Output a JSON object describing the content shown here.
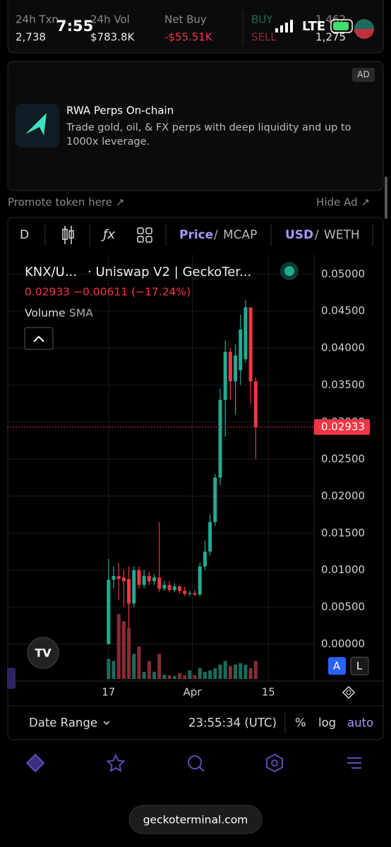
{
  "status_bar": {
    "time": "7:55",
    "network": "LTE"
  },
  "stats": [
    {
      "label": "24h Txn",
      "value": "2,738"
    },
    {
      "label": "24h Vol",
      "value": "$783.8K"
    },
    {
      "label": "Net Buy",
      "value": "-$55.51K"
    }
  ],
  "buy_sell": {
    "buy_label": "BUY",
    "buy_value": "1,462",
    "sell_label": "SELL",
    "sell_value": "1,275"
  },
  "ad": {
    "badge": "AD",
    "title": "RWA Perps On-chain",
    "text_line1": "Trade gold, oil, & FX perps with deep liquidity and up to",
    "text_line2": "1000x leverage."
  },
  "promote": "Promote token here ↗",
  "hide_ad": "Hide Ad ↗",
  "toolbar": {
    "interval": "D",
    "price": "Price",
    "mcap": "MCAP",
    "usd": "USD",
    "weth": "WETH",
    "separator": "/"
  },
  "chart_data": {
    "type": "candlestick",
    "title": "KNX/U...",
    "source": "· Uniswap V2 | GeckoTer...",
    "last_price": 0.02933,
    "change": "−0.00611 (−17.24%)",
    "volume_label": "Volume",
    "sma_label": "SMA",
    "up_color": "#22ab94",
    "down_color": "#f23645",
    "up_volume_color": "#1d6b5c",
    "down_volume_color": "#8a2a33",
    "open": [
      0.0,
      0.0087,
      0.0092,
      0.009,
      0.0088,
      0.0055,
      0.01,
      0.008,
      0.0092,
      0.0085,
      0.009,
      0.0075,
      0.008,
      0.0073,
      0.0078,
      0.0072,
      0.0068,
      0.0069,
      0.0067,
      0.0105,
      0.0125,
      0.0165,
      0.0225,
      0.033,
      0.0395,
      0.0355,
      0.037,
      0.0385,
      0.0455,
      0.0355
    ],
    "high": [
      0.0115,
      0.0105,
      0.011,
      0.01,
      0.0105,
      0.0105,
      0.0105,
      0.01,
      0.0098,
      0.0095,
      0.0165,
      0.0085,
      0.0085,
      0.0082,
      0.008,
      0.0078,
      0.0072,
      0.0073,
      0.011,
      0.014,
      0.0175,
      0.023,
      0.0345,
      0.041,
      0.04,
      0.0405,
      0.0445,
      0.0465,
      0.0455,
      0.036
    ],
    "low": [
      0.0,
      0.0075,
      0.006,
      0.005,
      0.002,
      0.005,
      0.0075,
      0.0075,
      0.008,
      0.008,
      0.007,
      0.0072,
      0.007,
      0.007,
      0.0068,
      0.0065,
      0.0065,
      0.0065,
      0.0065,
      0.01,
      0.012,
      0.016,
      0.0215,
      0.028,
      0.033,
      0.031,
      0.035,
      0.038,
      0.0325,
      0.025
    ],
    "close": [
      0.0087,
      0.0092,
      0.0088,
      0.0085,
      0.0055,
      0.01,
      0.008,
      0.0092,
      0.0085,
      0.009,
      0.0075,
      0.008,
      0.0073,
      0.0078,
      0.0072,
      0.0068,
      0.0069,
      0.0067,
      0.0105,
      0.0125,
      0.0165,
      0.0225,
      0.033,
      0.0395,
      0.0355,
      0.039,
      0.0425,
      0.0455,
      0.0355,
      0.02933
    ],
    "volume": [
      28,
      25,
      90,
      80,
      70,
      35,
      45,
      10,
      25,
      10,
      35,
      6,
      5,
      4,
      8,
      5,
      12,
      5,
      15,
      10,
      12,
      15,
      20,
      25,
      18,
      20,
      22,
      20,
      15,
      25
    ],
    "xlim": [
      -20,
      40.5
    ],
    "xticks": [
      {
        "value": 0,
        "label": "17"
      },
      {
        "value": 16.5,
        "label": "Apr"
      },
      {
        "value": 31.5,
        "label": "15"
      }
    ],
    "ylim": [
      -0.005,
      0.0527
    ],
    "yticks": [
      {
        "value": 0.05,
        "label": "0.05000"
      },
      {
        "value": 0.045,
        "label": "0.04500"
      },
      {
        "value": 0.04,
        "label": "0.04000"
      },
      {
        "value": 0.035,
        "label": "0.03500"
      },
      {
        "value": 0.03,
        "label": "0.03000"
      },
      {
        "value": 0.025,
        "label": "0.02500"
      },
      {
        "value": 0.02,
        "label": "0.02000"
      },
      {
        "value": 0.015,
        "label": "0.01500"
      },
      {
        "value": 0.01,
        "label": "0.01000"
      },
      {
        "value": 0.005,
        "label": "0.00500"
      },
      {
        "value": 0,
        "label": "0.00000"
      }
    ],
    "grid": true,
    "scale_buttons": [
      "A",
      "L"
    ]
  },
  "bottom_bar": {
    "date_range": "Date Range",
    "time": "23:55:34 (UTC)",
    "percent": "%",
    "log": "log",
    "auto": "auto"
  },
  "url": "geckoterminal.com"
}
